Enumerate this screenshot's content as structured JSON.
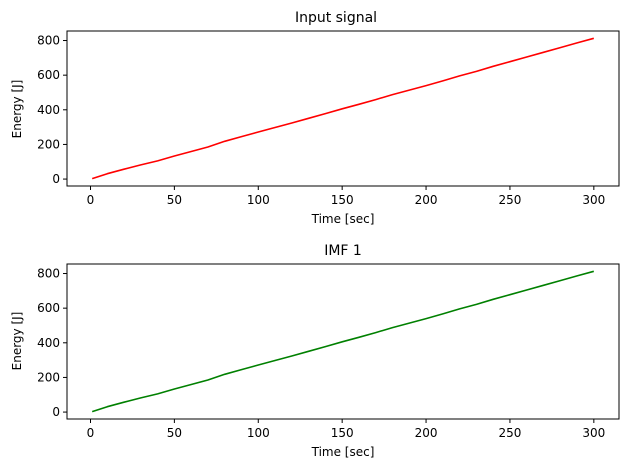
{
  "chart_data": [
    {
      "type": "line",
      "title": "Input signal",
      "xlabel": "Time [sec]",
      "ylabel": "Energy [J]",
      "xlim": [
        -14,
        315
      ],
      "ylim": [
        -40,
        855
      ],
      "xticks": [
        0,
        50,
        100,
        150,
        200,
        250,
        300
      ],
      "yticks": [
        0,
        200,
        400,
        600,
        800
      ],
      "grid": false,
      "series": [
        {
          "color": "#ff0000",
          "x": [
            1,
            10,
            20,
            30,
            40,
            50,
            60,
            70,
            80,
            90,
            100,
            110,
            120,
            130,
            140,
            150,
            160,
            170,
            180,
            190,
            200,
            210,
            220,
            230,
            240,
            250,
            260,
            270,
            280,
            290,
            300
          ],
          "y": [
            3,
            31,
            57,
            82,
            105,
            133,
            159,
            185,
            218,
            245,
            272,
            298,
            324,
            351,
            378,
            406,
            432,
            459,
            488,
            514,
            540,
            567,
            596,
            622,
            651,
            678,
            705,
            732,
            759,
            786,
            813
          ]
        }
      ]
    },
    {
      "type": "line",
      "title": "IMF 1",
      "xlabel": "Time [sec]",
      "ylabel": "Energy [J]",
      "xlim": [
        -14,
        315
      ],
      "ylim": [
        -40,
        855
      ],
      "xticks": [
        0,
        50,
        100,
        150,
        200,
        250,
        300
      ],
      "yticks": [
        0,
        200,
        400,
        600,
        800
      ],
      "grid": false,
      "series": [
        {
          "color": "#008000",
          "x": [
            1,
            10,
            20,
            30,
            40,
            50,
            60,
            70,
            80,
            90,
            100,
            110,
            120,
            130,
            140,
            150,
            160,
            170,
            180,
            190,
            200,
            210,
            220,
            230,
            240,
            250,
            260,
            270,
            280,
            290,
            300
          ],
          "y": [
            3,
            31,
            57,
            82,
            105,
            133,
            159,
            185,
            218,
            245,
            272,
            298,
            324,
            351,
            378,
            406,
            432,
            459,
            488,
            514,
            540,
            567,
            596,
            622,
            651,
            678,
            705,
            732,
            759,
            786,
            813
          ]
        }
      ]
    }
  ]
}
